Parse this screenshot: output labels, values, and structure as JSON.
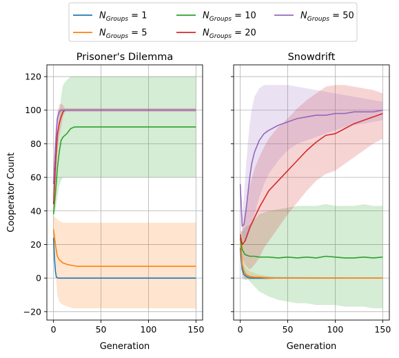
{
  "chart_data": [
    {
      "type": "line",
      "title": "Prisoner's Dilemma",
      "xlabel": "Generation",
      "ylabel": "Cooperator Count",
      "xlim": [
        -7,
        157
      ],
      "ylim": [
        -25,
        127
      ],
      "xticks": [
        0,
        50,
        100,
        150
      ],
      "yticks": [
        -20,
        0,
        20,
        40,
        60,
        80,
        100,
        120
      ],
      "grid": true,
      "series": [
        {
          "name": "N_Groups=1",
          "color": "#1f77b4",
          "x": [
            0,
            1,
            2,
            3,
            5,
            10,
            150
          ],
          "y": [
            24,
            12,
            4,
            0.5,
            0,
            0,
            0
          ],
          "band_upper": [
            24,
            12,
            4,
            0.5,
            0,
            0,
            0
          ],
          "band_lower": [
            24,
            12,
            4,
            0.5,
            0,
            0,
            0
          ]
        },
        {
          "name": "N_Groups=5",
          "color": "#ff7f0e",
          "x": [
            0,
            2,
            4,
            6,
            10,
            15,
            20,
            25,
            30,
            150
          ],
          "y": [
            29,
            20,
            13,
            11,
            9,
            8,
            7.5,
            7,
            7,
            7
          ],
          "band_upper": [
            37,
            36,
            35,
            34,
            33,
            33,
            33,
            33,
            33,
            33
          ],
          "band_lower": [
            21,
            4,
            -10,
            -14,
            -16,
            -17,
            -18,
            -18,
            -18,
            -18
          ]
        },
        {
          "name": "N_Groups=10",
          "color": "#2ca02c",
          "x": [
            0,
            2,
            4,
            6,
            8,
            10,
            14,
            18,
            22,
            26,
            150
          ],
          "y": [
            38,
            50,
            65,
            75,
            82,
            84,
            86,
            89,
            90,
            90,
            90
          ],
          "band_upper": [
            38,
            62,
            80,
            97,
            108,
            115,
            118,
            120,
            120,
            120,
            120
          ],
          "band_lower": [
            38,
            40,
            48,
            55,
            58,
            60,
            60,
            60,
            60,
            60,
            60
          ]
        },
        {
          "name": "N_Groups=20",
          "color": "#d62728",
          "x": [
            0,
            2,
            4,
            6,
            8,
            10,
            12,
            150
          ],
          "y": [
            44,
            66,
            85,
            92,
            96,
            99,
            100,
            100
          ],
          "band_upper": [
            44,
            78,
            96,
            103,
            104,
            103,
            101,
            101
          ],
          "band_lower": [
            44,
            55,
            75,
            84,
            90,
            96,
            99,
            99
          ]
        },
        {
          "name": "N_Groups=50",
          "color": "#9467bd",
          "x": [
            0,
            2,
            4,
            6,
            8,
            10,
            150
          ],
          "y": [
            56,
            78,
            95,
            99,
            100,
            100,
            100
          ],
          "band_upper": [
            56,
            88,
            100,
            101,
            101,
            101,
            101
          ],
          "band_lower": [
            56,
            70,
            88,
            97,
            99,
            100,
            100
          ]
        }
      ]
    },
    {
      "type": "line",
      "title": "Snowdrift",
      "xlabel": "Generation",
      "ylabel": "",
      "xlim": [
        -7,
        157
      ],
      "ylim": [
        -25,
        127
      ],
      "xticks": [
        0,
        50,
        100,
        150
      ],
      "yticks": [
        -20,
        0,
        20,
        40,
        60,
        80,
        100,
        120
      ],
      "grid": true,
      "series": [
        {
          "name": "N_Groups=1",
          "color": "#1f77b4",
          "x": [
            0,
            2,
            4,
            6,
            10,
            150
          ],
          "y": [
            18,
            5,
            2,
            1,
            0,
            0
          ],
          "band_upper": [
            22,
            10,
            5,
            3,
            1,
            0
          ],
          "band_lower": [
            14,
            0,
            -1,
            -1,
            0,
            0
          ]
        },
        {
          "name": "N_Groups=5",
          "color": "#ff7f0e",
          "x": [
            0,
            2,
            4,
            6,
            10,
            15,
            20,
            30,
            40,
            150
          ],
          "y": [
            24,
            8,
            4,
            2,
            1,
            0.5,
            0.5,
            0,
            0,
            0
          ],
          "band_upper": [
            28,
            14,
            8,
            6,
            4,
            3,
            2,
            1,
            0,
            0
          ],
          "band_lower": [
            20,
            2,
            0,
            -1,
            -1,
            -1,
            -1,
            -1,
            0,
            0
          ]
        },
        {
          "name": "N_Groups=10",
          "color": "#2ca02c",
          "x": [
            0,
            2,
            5,
            10,
            15,
            20,
            30,
            40,
            50,
            60,
            70,
            80,
            90,
            100,
            110,
            120,
            130,
            140,
            150
          ],
          "y": [
            24,
            17,
            14,
            13,
            13,
            12.5,
            12.5,
            12,
            12.5,
            12,
            12.5,
            12,
            13,
            12.5,
            12,
            12,
            12.5,
            12,
            12.5
          ],
          "band_upper": [
            26,
            28,
            30,
            32,
            35,
            38,
            40,
            41,
            42,
            43,
            43,
            43,
            44,
            43,
            43,
            43,
            44,
            43,
            43
          ],
          "band_lower": [
            22,
            8,
            2,
            -2,
            -5,
            -8,
            -11,
            -13,
            -14,
            -15,
            -15,
            -16,
            -16,
            -16,
            -17,
            -17,
            -17,
            -18,
            -18
          ]
        },
        {
          "name": "N_Groups=20",
          "color": "#d62728",
          "x": [
            0,
            2,
            5,
            10,
            15,
            20,
            25,
            30,
            40,
            50,
            60,
            70,
            80,
            90,
            100,
            110,
            120,
            130,
            140,
            150
          ],
          "y": [
            26,
            20,
            22,
            30,
            36,
            42,
            47,
            52,
            58,
            64,
            70,
            76,
            81,
            85,
            86,
            89,
            92,
            94,
            96,
            98
          ],
          "band_upper": [
            28,
            28,
            40,
            55,
            65,
            72,
            78,
            83,
            90,
            95,
            101,
            106,
            110,
            114,
            115,
            115,
            114,
            113,
            112,
            110
          ],
          "band_lower": [
            24,
            12,
            8,
            5,
            8,
            12,
            18,
            22,
            30,
            38,
            45,
            52,
            58,
            62,
            64,
            68,
            72,
            76,
            80,
            83
          ]
        },
        {
          "name": "N_Groups=50",
          "color": "#9467bd",
          "x": [
            0,
            2,
            4,
            6,
            8,
            10,
            12,
            15,
            20,
            25,
            30,
            40,
            50,
            60,
            70,
            80,
            90,
            100,
            110,
            120,
            130,
            140,
            150
          ],
          "y": [
            56,
            31,
            32,
            40,
            50,
            60,
            68,
            75,
            82,
            86,
            88,
            91,
            93,
            95,
            96,
            97,
            97,
            98,
            98,
            99,
            99,
            99,
            100
          ],
          "band_upper": [
            58,
            36,
            50,
            66,
            80,
            92,
            100,
            108,
            113,
            115,
            115,
            115,
            115,
            114,
            113,
            112,
            111,
            110,
            109,
            108,
            107,
            106,
            105
          ],
          "band_lower": [
            54,
            26,
            22,
            22,
            25,
            28,
            32,
            38,
            48,
            56,
            62,
            70,
            76,
            80,
            82,
            84,
            86,
            88,
            90,
            91,
            92,
            93,
            94
          ]
        }
      ]
    }
  ],
  "legend": {
    "placement": "top-center",
    "entries": [
      {
        "base": "N",
        "sub": "Groups",
        "eq": " = 1",
        "color": "#1f77b4"
      },
      {
        "base": "N",
        "sub": "Groups",
        "eq": " = 5",
        "color": "#ff7f0e"
      },
      {
        "base": "N",
        "sub": "Groups",
        "eq": " = 10",
        "color": "#2ca02c"
      },
      {
        "base": "N",
        "sub": "Groups",
        "eq": " = 20",
        "color": "#d62728"
      },
      {
        "base": "N",
        "sub": "Groups",
        "eq": " = 50",
        "color": "#9467bd"
      }
    ]
  }
}
